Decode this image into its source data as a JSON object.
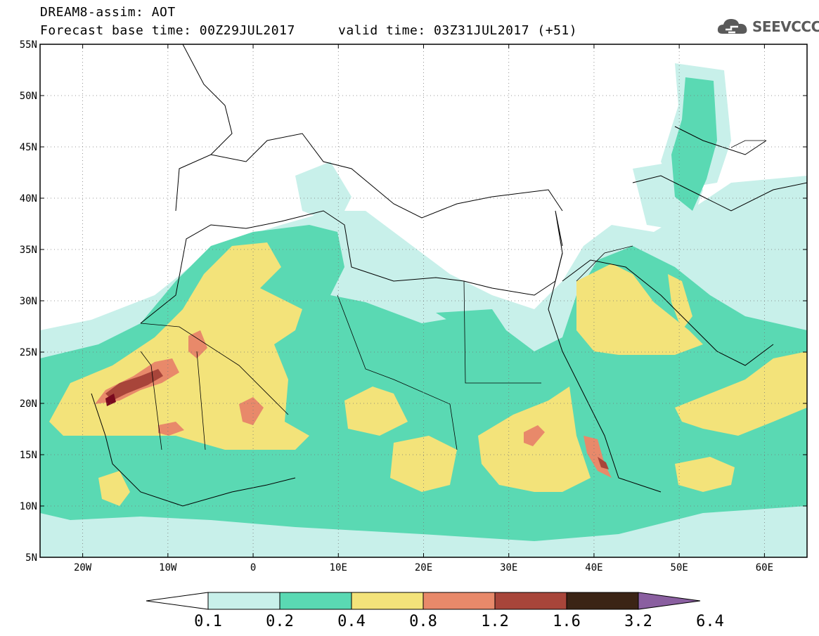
{
  "header": {
    "title": "DREAM8-assim: AOT",
    "base_time": "Forecast base time: 00Z29JUL2017",
    "valid_time": "valid time: 03Z31JUL2017 (+51)"
  },
  "logo": {
    "text": "SEEVCCC",
    "icon": "cloud-icon"
  },
  "map": {
    "lat_labels": [
      "55N",
      "50N",
      "45N",
      "40N",
      "35N",
      "30N",
      "25N",
      "20N",
      "15N",
      "10N",
      "5N"
    ],
    "lon_labels": [
      "20W",
      "10W",
      "0",
      "10E",
      "20E",
      "30E",
      "40E",
      "50E",
      "60E"
    ],
    "lon_range": [
      -25,
      65
    ],
    "lat_range": [
      5,
      55
    ],
    "gridlines": "dotted"
  },
  "legend": {
    "levels": [
      "0.1",
      "0.2",
      "0.4",
      "0.8",
      "1.2",
      "1.6",
      "3.2",
      "6.4"
    ],
    "colors": [
      "#c8f0ea",
      "#5ad9b3",
      "#f3e37a",
      "#e8896a",
      "#a8453a",
      "#7a0a1e",
      "#3b2415",
      "#8a5fa0"
    ]
  }
}
